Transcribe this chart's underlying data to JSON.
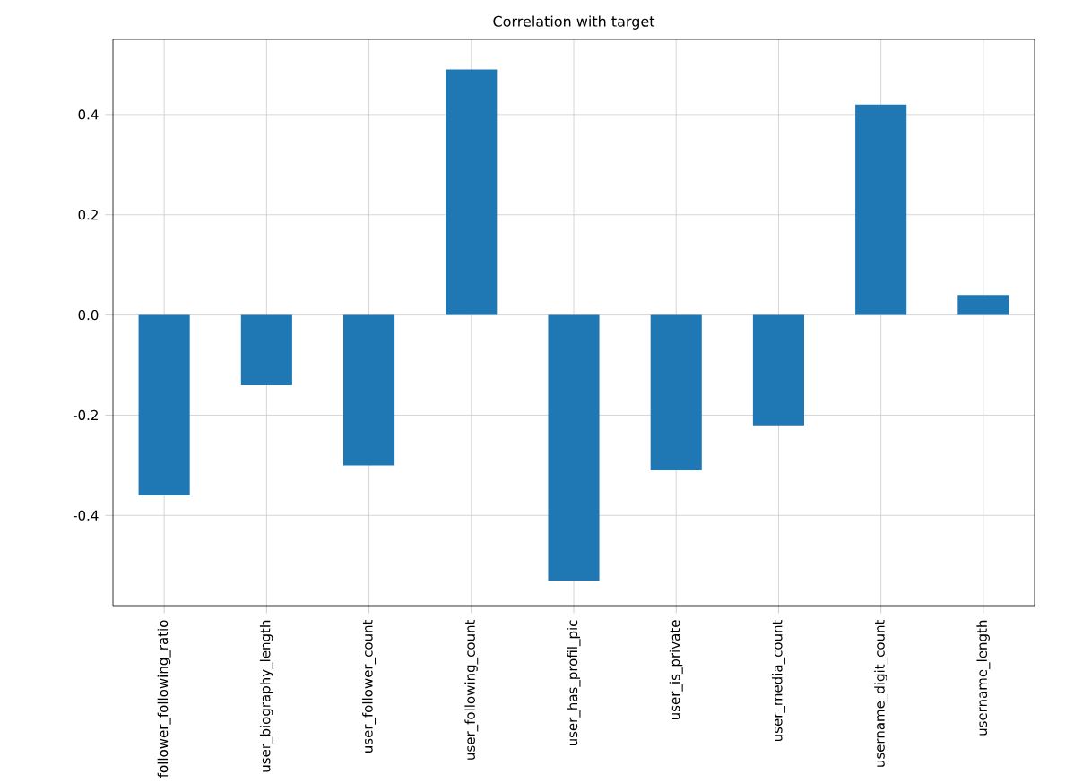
{
  "chart_data": {
    "type": "bar",
    "title": "Correlation with target",
    "categories": [
      "follower_following_ratio",
      "user_biography_length",
      "user_follower_count",
      "user_following_count",
      "user_has_profil_pic",
      "user_is_private",
      "user_media_count",
      "username_digit_count",
      "username_length"
    ],
    "values": [
      -0.36,
      -0.14,
      -0.3,
      0.49,
      -0.53,
      -0.31,
      -0.22,
      0.42,
      0.04
    ],
    "color": "#1f77b4",
    "ylim": [
      -0.58,
      0.55
    ],
    "yticks": [
      {
        "value": -0.4,
        "label": "-0.4"
      },
      {
        "value": -0.2,
        "label": "-0.2"
      },
      {
        "value": 0,
        "label": "0.0"
      },
      {
        "value": 0.2,
        "label": "0.2"
      },
      {
        "value": 0.4,
        "label": "0.4"
      }
    ],
    "grid": true
  }
}
